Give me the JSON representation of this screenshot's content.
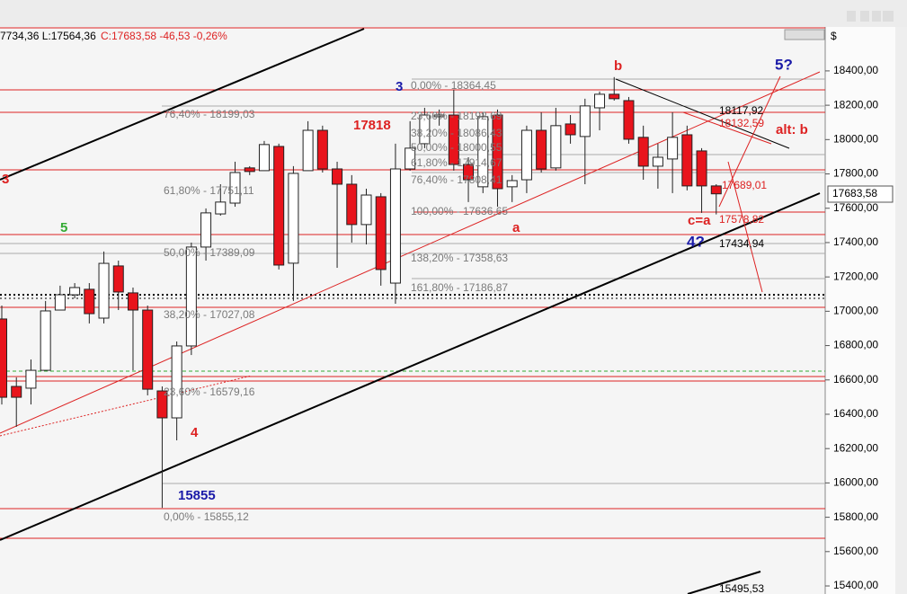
{
  "header": {
    "ohl": "7734,36 L:17564,36",
    "close": "C:17683,58 -46,53 -0,26%",
    "currency": "$"
  },
  "chart_data": {
    "type": "candlestick",
    "ylim": [
      15353,
      18656
    ],
    "yticks": [
      {
        "value": 15400,
        "label": "15400,00"
      },
      {
        "value": 15600,
        "label": "15600,00"
      },
      {
        "value": 15800,
        "label": "15800,00"
      },
      {
        "value": 16000,
        "label": "16000,00"
      },
      {
        "value": 16200,
        "label": "16200,00"
      },
      {
        "value": 16400,
        "label": "16400,00"
      },
      {
        "value": 16600,
        "label": "16600,00"
      },
      {
        "value": 16800,
        "label": "16800,00"
      },
      {
        "value": 17000,
        "label": "17000,00"
      },
      {
        "value": 17200,
        "label": "17200,00"
      },
      {
        "value": 17400,
        "label": "17400,00"
      },
      {
        "value": 17600,
        "label": "17600,00"
      },
      {
        "value": 17800,
        "label": "17800,00"
      },
      {
        "value": 18000,
        "label": "18000,00"
      },
      {
        "value": 18200,
        "label": "18200,00"
      },
      {
        "value": 18400,
        "label": "18400,00"
      }
    ],
    "up_color": "#ffffff",
    "down_color": "#e8141c",
    "open": [
      16955,
      16562,
      16552,
      16656,
      17007,
      17096,
      17128,
      16960,
      17264,
      17107,
      17007,
      16536,
      16379,
      16798,
      17374,
      17567,
      17630,
      17835,
      17819,
      17960,
      17280,
      17819,
      18054,
      17829,
      17740,
      17505,
      17667,
      17164,
      17829,
      17976,
      18133,
      18143,
      17855,
      17725,
      18143,
      17725,
      17766,
      18054,
      17835,
      18091,
      18018,
      18185,
      18264,
      18227,
      18013,
      17845,
      17887,
      18028,
      17934,
      17730
    ],
    "high": [
      17033,
      16615,
      16719,
      17060,
      17149,
      17164,
      17164,
      17348,
      17295,
      17138,
      17033,
      16562,
      16824,
      17400,
      17599,
      17740,
      17871,
      17845,
      17992,
      17976,
      17845,
      18107,
      18081,
      17871,
      17793,
      17714,
      17688,
      17976,
      18107,
      18185,
      18175,
      18290,
      17897,
      18159,
      18175,
      17793,
      18081,
      18159,
      18185,
      18143,
      18238,
      18280,
      18364,
      18248,
      18081,
      17976,
      18159,
      18081,
      17950,
      17740
    ],
    "low": [
      16457,
      16327,
      16457,
      16656,
      17007,
      17075,
      16929,
      16929,
      17007,
      16656,
      16510,
      15855,
      16248,
      16745,
      17295,
      17557,
      17609,
      17793,
      17819,
      17243,
      17060,
      17819,
      17808,
      17253,
      17400,
      17389,
      17149,
      17044,
      17819,
      17950,
      18081,
      17819,
      17636,
      17688,
      17609,
      17636,
      17688,
      17808,
      17819,
      17976,
      17740,
      18054,
      18227,
      17976,
      17766,
      17714,
      17688,
      17704,
      17573,
      17564
    ],
    "close": [
      16499,
      16499,
      16656,
      17002,
      17096,
      17138,
      16986,
      17279,
      17112,
      17007,
      16546,
      16379,
      16798,
      17374,
      17573,
      17636,
      17808,
      17814,
      17971,
      17269,
      17803,
      18054,
      17829,
      17740,
      17505,
      17677,
      17243,
      17829,
      17950,
      18143,
      18143,
      17855,
      17766,
      18133,
      17714,
      17761,
      18054,
      17829,
      18081,
      18028,
      18196,
      18264,
      18238,
      18002,
      17845,
      17897,
      18013,
      17730,
      17730,
      17684
    ],
    "fib_labels": [
      "76,40% - 18199,03",
      "61,80% - 17751,11",
      "50,00% - 17389,09",
      "38,20% - 17027,08",
      "23,60% - 16579,16",
      "0,00% - 15855,12",
      "0,00% - 18364,45",
      "23,60% - 18192,69",
      "38,20% - 18086,43",
      "50,00% - 18000,55",
      "61,80% - 17914,67",
      "76,40% - 17808,41",
      "100,00% - 17636,65",
      "138,20% - 17358,63",
      "161,80% - 17186,87"
    ],
    "annotations": [
      "3",
      "5",
      "17818",
      "3",
      "b",
      "5?",
      "alt: b",
      "a",
      "c=a",
      "4?",
      "4",
      "15855"
    ],
    "price_labels": [
      "18117,92",
      "18132,59",
      "17689,01",
      "17578,82",
      "17434,94",
      "15495,53"
    ],
    "last_price": "17683,58"
  }
}
